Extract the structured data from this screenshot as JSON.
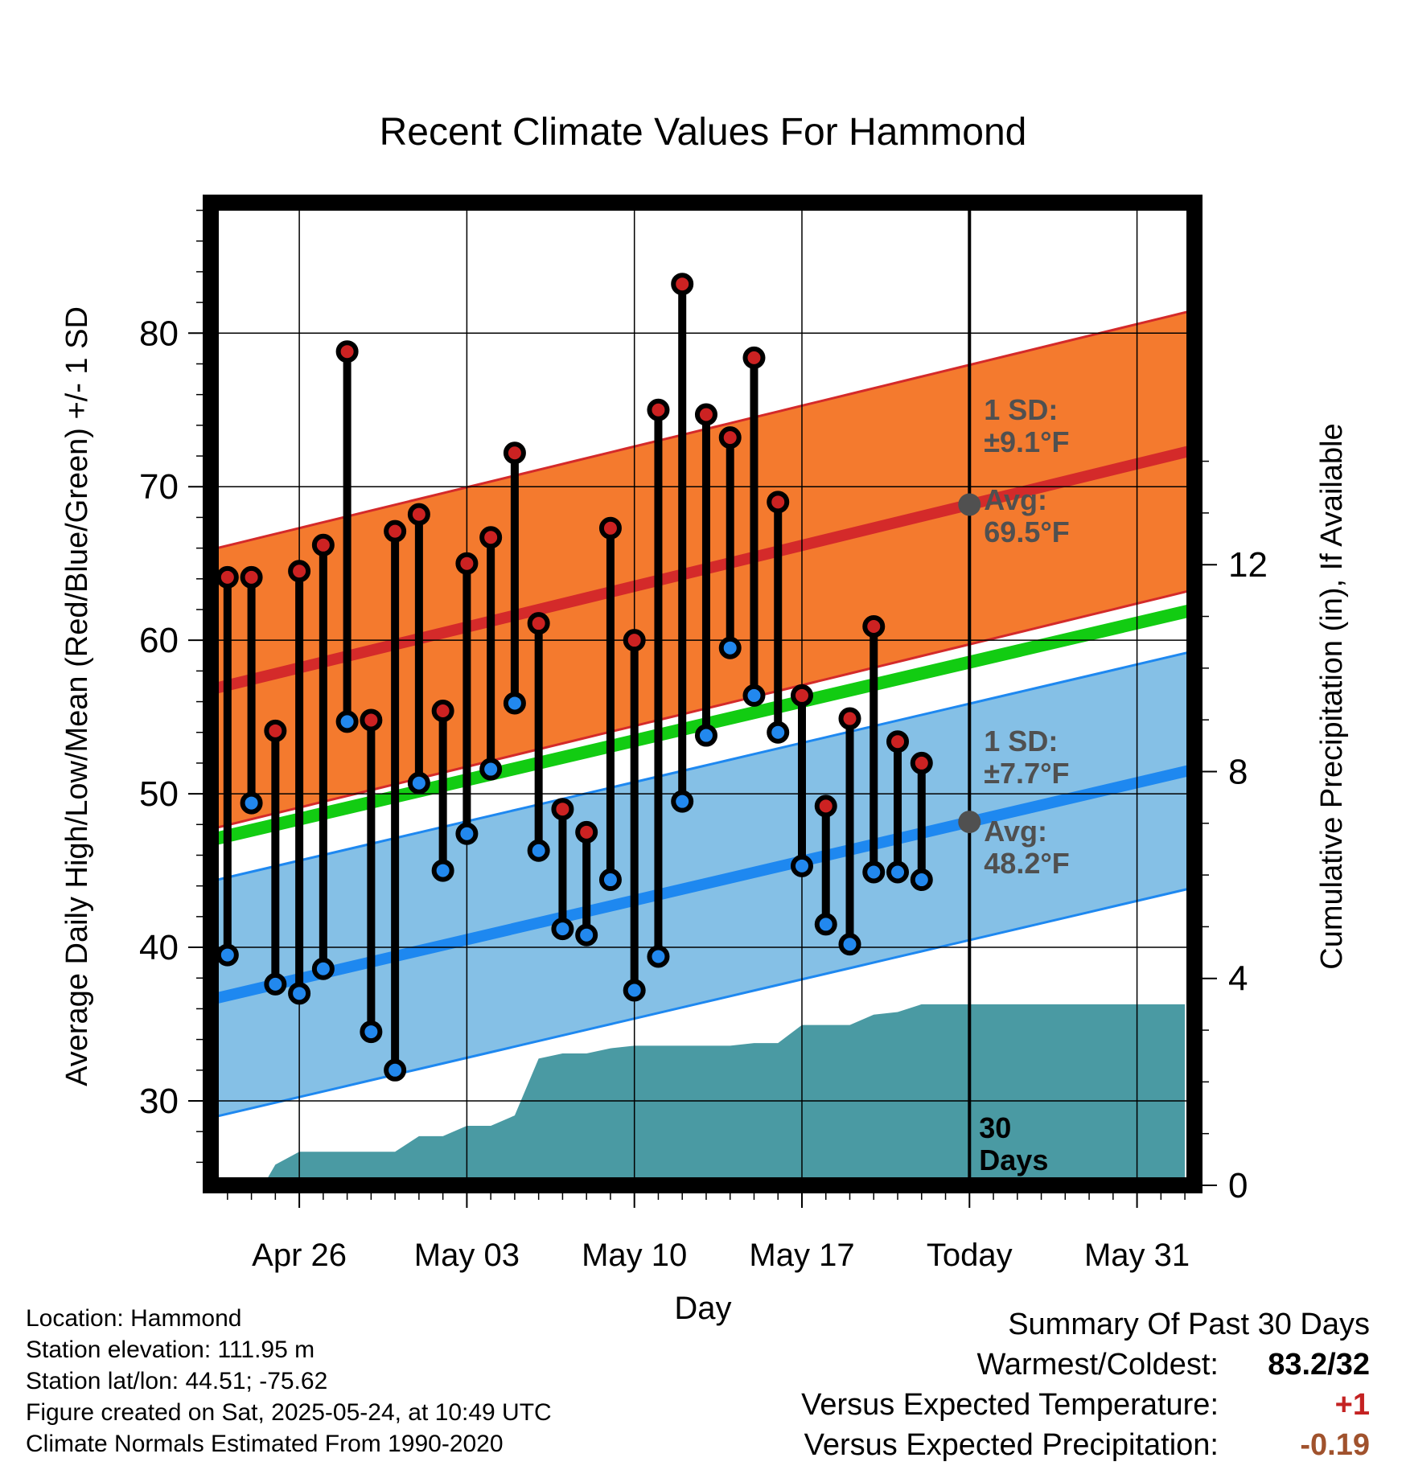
{
  "chart_data": {
    "type": "line",
    "title": "Recent Climate Values For Hammond",
    "xlabel": "Day",
    "ylabel": "Average Daily High/Low/Mean (Red/Blue/Green) +/- 1 SD",
    "ylabel_right": "Cumulative Precipitation (in), If Available",
    "x_ticks": [
      "Apr 26",
      "May 03",
      "May 10",
      "May 17",
      "Today",
      "May 31"
    ],
    "x_tick_days": [
      3,
      10,
      17,
      24,
      31,
      38
    ],
    "xlim": [
      -0.7,
      40.4
    ],
    "ylim": [
      24.5,
      88.5
    ],
    "y_ticks": [
      30,
      40,
      50,
      60,
      70,
      80
    ],
    "ylim_right": [
      0,
      19.0
    ],
    "y_ticks_right": [
      0,
      4,
      8,
      12
    ],
    "today_day": 31,
    "normal_high": {
      "start": 56.8,
      "end": 72.4,
      "sd": 9.1
    },
    "normal_low": {
      "start": 36.6,
      "end": 51.6,
      "sd": 7.7
    },
    "normal_mean": {
      "start": 47.0,
      "end": 62.0
    },
    "daily": {
      "days": [
        0,
        1,
        2,
        3,
        4,
        5,
        6,
        7,
        8,
        9,
        10,
        11,
        12,
        13,
        14,
        15,
        16,
        17,
        18,
        19,
        20,
        21,
        22,
        23,
        24,
        25,
        26,
        27,
        28,
        29
      ],
      "high": [
        64.1,
        64.1,
        54.1,
        64.5,
        66.2,
        78.8,
        54.8,
        67.1,
        68.2,
        55.4,
        65.0,
        66.7,
        72.2,
        61.1,
        49.0,
        47.5,
        67.3,
        60.0,
        75.0,
        83.2,
        74.7,
        73.2,
        78.4,
        69.0,
        56.4,
        49.2,
        54.9,
        60.9,
        53.4,
        52.0
      ],
      "low": [
        39.5,
        49.4,
        37.6,
        37.0,
        38.6,
        54.7,
        34.5,
        32.0,
        50.7,
        45.0,
        47.4,
        51.6,
        55.9,
        46.3,
        41.2,
        40.8,
        44.4,
        37.2,
        39.4,
        49.5,
        53.8,
        59.5,
        56.4,
        54.0,
        45.3,
        41.5,
        40.2,
        44.9,
        44.9,
        44.4
      ]
    },
    "precip": {
      "days": [
        0,
        1,
        1.5,
        2,
        3,
        4,
        5,
        6,
        7,
        8,
        9,
        10,
        11,
        12,
        13,
        14,
        15,
        16,
        17,
        18,
        19,
        20,
        21,
        22,
        23,
        24,
        25,
        26,
        27,
        28,
        29,
        30,
        31,
        32,
        33,
        34,
        35,
        36,
        37,
        38,
        39,
        40
      ],
      "values": [
        0,
        0,
        0,
        0.4,
        0.65,
        0.65,
        0.65,
        0.65,
        0.65,
        0.95,
        0.95,
        1.15,
        1.15,
        1.35,
        2.45,
        2.55,
        2.55,
        2.65,
        2.7,
        2.7,
        2.7,
        2.7,
        2.7,
        2.75,
        2.75,
        3.1,
        3.1,
        3.1,
        3.3,
        3.35,
        3.5,
        3.5,
        3.5,
        3.5,
        3.5,
        3.5,
        3.5,
        3.5,
        3.5,
        3.5,
        3.5,
        3.5
      ]
    },
    "annotations": {
      "high_sd": "1 SD:",
      "high_sd_val": "±9.1°F",
      "high_avg": "Avg:",
      "high_avg_val": "69.5°F",
      "low_sd": "1 SD:",
      "low_sd_val": "±7.7°F",
      "low_avg": "Avg:",
      "low_avg_val": "48.2°F",
      "days_num": "30",
      "days_word": "Days"
    },
    "colors": {
      "high_band": "#f47a2e",
      "high_line": "#d42a2a",
      "low_band": "#85c0e6",
      "low_line": "#1e88f0",
      "mean_line": "#12cc12",
      "precip_fill": "#4a9aa3",
      "high_marker": "#cc2222",
      "low_marker": "#2288ee",
      "annotation": "#505050",
      "avg_marker": "#505050"
    }
  },
  "info": {
    "location": "Location: Hammond",
    "elevation": "Station elevation: 111.95 m",
    "latlon": "Station lat/lon: 44.51; -75.62",
    "created": "Figure created on Sat, 2025-05-24, at 10:49 UTC",
    "normals": "Climate Normals Estimated From 1990-2020"
  },
  "summary": {
    "title": "Summary Of Past 30 Days",
    "warmest_label": "Warmest/Coldest:",
    "warmest_value": "83.2/32",
    "temp_label": "Versus Expected Temperature:",
    "temp_value": "+1",
    "temp_color": "#c42222",
    "precip_label": "Versus Expected Precipitation:",
    "precip_value": "-0.19",
    "precip_color": "#a0522d"
  }
}
